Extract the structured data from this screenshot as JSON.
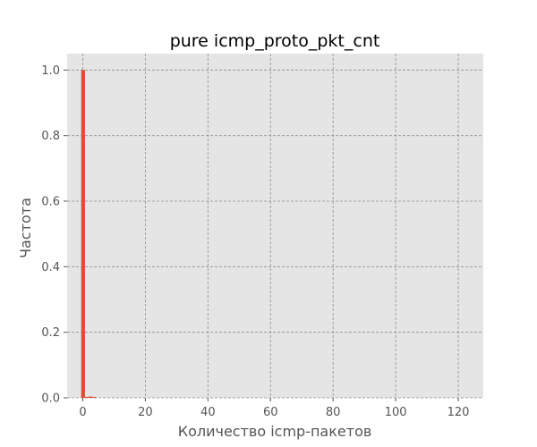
{
  "chart_data": {
    "type": "bar",
    "title": "pure icmp_proto_pkt_cnt",
    "xlabel": "Количество icmp-пакетов",
    "ylabel": "Частота",
    "xlim": [
      -5,
      128
    ],
    "ylim": [
      0,
      1.05
    ],
    "x_ticks": [
      0,
      20,
      40,
      60,
      80,
      100,
      120
    ],
    "y_ticks": [
      0.0,
      0.2,
      0.4,
      0.6,
      0.8,
      1.0
    ],
    "x_tick_labels": [
      "0",
      "20",
      "40",
      "60",
      "80",
      "100",
      "120"
    ],
    "y_tick_labels": [
      "0.0",
      "0.2",
      "0.4",
      "0.6",
      "0.8",
      "1.0"
    ],
    "grid": true,
    "bins": [
      {
        "start": -0.5,
        "end": 0.7,
        "value": 1.0
      },
      {
        "start": 0.7,
        "end": 1.9,
        "value": 0.003
      },
      {
        "start": 1.9,
        "end": 3.1,
        "value": 0.004
      },
      {
        "start": 3.1,
        "end": 4.3,
        "value": 0.002
      }
    ],
    "colors": {
      "bar": "#e24a33",
      "plot_bg": "#e5e5e5",
      "grid": "#8f8f8f"
    }
  }
}
